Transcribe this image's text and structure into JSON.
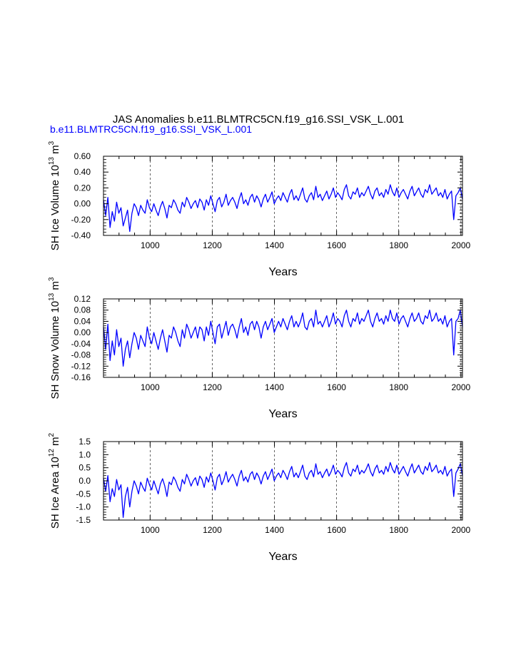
{
  "figure": {
    "title": "JAS Anomalies b.e11.BLMTRC5CN.f19_g16.SSI_VSK_L.001",
    "subtitle": "b.e11.BLMTRC5CN.f19_g16.SSI_VSK_L.001",
    "line_color": "#0000ff",
    "grid_color": "#000000"
  },
  "chart_data": [
    {
      "type": "line",
      "title": "",
      "xlabel": "Years",
      "ylabel": {
        "base": "SH Ice Volume 10",
        "exp1": "13",
        "unit": " m",
        "exp2": "3"
      },
      "xlim": [
        850,
        2005
      ],
      "ylim": [
        -0.4,
        0.6
      ],
      "xticks": [
        "1000",
        "1200",
        "1400",
        "1600",
        "1800",
        "2000"
      ],
      "yticks": [
        "-0.40",
        "-0.20",
        "0.00",
        "0.20",
        "0.40",
        "0.60"
      ],
      "grid": "vertical dashed at labelled x ticks",
      "series": [
        {
          "x_start": 850,
          "x_end": 2005,
          "values": [
            0.05,
            -0.15,
            0.08,
            -0.3,
            -0.1,
            -0.22,
            0.02,
            -0.12,
            -0.05,
            -0.28,
            -0.18,
            -0.08,
            -0.35,
            -0.12,
            0.0,
            -0.05,
            -0.15,
            -0.02,
            -0.08,
            -0.12,
            0.05,
            -0.05,
            -0.1,
            0.0,
            -0.08,
            -0.15,
            -0.04,
            0.03,
            -0.06,
            -0.18,
            -0.02,
            -0.05,
            0.05,
            0.0,
            -0.08,
            -0.12,
            0.02,
            -0.04,
            0.08,
            0.02,
            -0.06,
            0.0,
            0.04,
            -0.05,
            0.06,
            0.02,
            -0.08,
            0.05,
            -0.02,
            0.1,
            0.0,
            -0.1,
            0.04,
            0.08,
            -0.04,
            0.02,
            0.12,
            -0.02,
            0.04,
            0.08,
            0.02,
            -0.06,
            0.06,
            0.14,
            0.0,
            0.05,
            -0.02,
            0.08,
            0.12,
            0.02,
            0.1,
            0.05,
            -0.04,
            0.06,
            0.12,
            0.02,
            0.08,
            0.15,
            0.0,
            0.06,
            0.1,
            0.04,
            0.14,
            0.08,
            0.02,
            0.12,
            0.18,
            0.05,
            0.1,
            0.04,
            0.12,
            0.2,
            0.06,
            0.02,
            0.1,
            0.14,
            0.05,
            0.22,
            0.08,
            0.12,
            0.04,
            0.1,
            0.16,
            0.06,
            0.12,
            0.2,
            0.08,
            0.14,
            0.1,
            0.05,
            0.18,
            0.24,
            0.1,
            0.06,
            0.15,
            0.12,
            0.2,
            0.08,
            0.14,
            0.1,
            0.16,
            0.22,
            0.12,
            0.06,
            0.16,
            0.2,
            0.1,
            0.14,
            0.08,
            0.18,
            0.12,
            0.24,
            0.15,
            0.1,
            0.2,
            0.08,
            0.14,
            0.18,
            0.12,
            0.06,
            0.16,
            0.22,
            0.1,
            0.15,
            0.2,
            0.12,
            0.08,
            0.18,
            0.14,
            0.24,
            0.12,
            0.16,
            0.2,
            0.1,
            0.14,
            0.08,
            0.18,
            0.06,
            0.12,
            0.16,
            -0.2,
            0.1,
            0.14,
            0.2,
            0.06
          ]
        }
      ]
    },
    {
      "type": "line",
      "title": "",
      "xlabel": "Years",
      "ylabel": {
        "base": "SH Snow Volume 10",
        "exp1": "13",
        "unit": " m",
        "exp2": "3"
      },
      "xlim": [
        850,
        2005
      ],
      "ylim": [
        -0.16,
        0.12
      ],
      "xticks": [
        "1000",
        "1200",
        "1400",
        "1600",
        "1800",
        "2000"
      ],
      "yticks": [
        "-0.16",
        "-0.12",
        "-0.08",
        "-0.04",
        "0.00",
        "0.04",
        "0.08",
        "0.12"
      ],
      "grid": "vertical dashed at labelled x ticks",
      "series": [
        {
          "x_start": 850,
          "x_end": 2005,
          "values": [
            0.02,
            -0.06,
            0.03,
            -0.1,
            -0.03,
            -0.08,
            0.01,
            -0.05,
            -0.02,
            -0.12,
            -0.06,
            -0.03,
            -0.09,
            -0.04,
            0.0,
            -0.02,
            -0.06,
            -0.01,
            -0.03,
            -0.05,
            0.02,
            -0.02,
            -0.04,
            0.0,
            -0.03,
            -0.06,
            -0.02,
            0.01,
            -0.03,
            -0.07,
            -0.01,
            -0.02,
            0.02,
            0.0,
            -0.03,
            -0.05,
            0.01,
            -0.02,
            0.03,
            0.01,
            -0.02,
            0.0,
            0.02,
            -0.02,
            0.02,
            0.01,
            -0.03,
            0.02,
            -0.01,
            0.04,
            0.0,
            -0.04,
            0.02,
            0.03,
            -0.02,
            0.01,
            0.04,
            -0.01,
            0.02,
            0.03,
            0.01,
            -0.02,
            0.02,
            0.05,
            0.0,
            0.02,
            -0.01,
            0.03,
            0.04,
            0.01,
            0.04,
            0.02,
            -0.02,
            0.02,
            0.04,
            0.01,
            0.03,
            0.05,
            0.0,
            0.02,
            0.04,
            0.02,
            0.05,
            0.03,
            0.01,
            0.04,
            0.06,
            0.02,
            0.04,
            0.02,
            0.04,
            0.07,
            0.02,
            0.01,
            0.04,
            0.05,
            0.02,
            0.08,
            0.03,
            0.04,
            0.02,
            0.04,
            0.06,
            0.02,
            0.04,
            0.07,
            0.03,
            0.05,
            0.04,
            0.02,
            0.06,
            0.08,
            0.04,
            0.02,
            0.05,
            0.04,
            0.07,
            0.03,
            0.05,
            0.04,
            0.06,
            0.08,
            0.04,
            0.02,
            0.05,
            0.07,
            0.04,
            0.05,
            0.03,
            0.06,
            0.04,
            0.08,
            0.05,
            0.04,
            0.07,
            0.03,
            0.05,
            0.06,
            0.04,
            0.02,
            0.05,
            0.07,
            0.04,
            0.05,
            0.07,
            0.04,
            0.03,
            0.06,
            0.05,
            0.08,
            0.04,
            0.05,
            0.07,
            0.04,
            0.05,
            0.03,
            0.06,
            0.02,
            0.04,
            0.05,
            -0.08,
            0.04,
            0.05,
            0.08,
            0.02
          ]
        }
      ]
    },
    {
      "type": "line",
      "title": "",
      "xlabel": "Years",
      "ylabel": {
        "base": "SH Ice Area 10",
        "exp1": "12",
        "unit": " m",
        "exp2": "2"
      },
      "xlim": [
        850,
        2005
      ],
      "ylim": [
        -1.5,
        1.5
      ],
      "xticks": [
        "1000",
        "1200",
        "1400",
        "1600",
        "1800",
        "2000"
      ],
      "yticks": [
        "-1.5",
        "-1.0",
        "-0.5",
        "0.0",
        "0.5",
        "1.0",
        "1.5"
      ],
      "grid": "vertical dashed at labelled x ticks",
      "series": [
        {
          "x_start": 850,
          "x_end": 2005,
          "values": [
            0.1,
            -0.4,
            0.2,
            -0.8,
            -0.3,
            -0.6,
            0.05,
            -0.35,
            -0.15,
            -1.4,
            -0.6,
            -0.25,
            -1.0,
            -0.4,
            0.0,
            -0.2,
            -0.5,
            -0.05,
            -0.25,
            -0.4,
            0.1,
            -0.15,
            -0.35,
            0.0,
            -0.25,
            -0.5,
            -0.12,
            0.08,
            -0.2,
            -0.6,
            -0.05,
            -0.15,
            0.15,
            0.0,
            -0.25,
            -0.4,
            0.05,
            -0.12,
            0.25,
            0.05,
            -0.2,
            0.0,
            0.12,
            -0.18,
            0.18,
            0.05,
            -0.25,
            0.15,
            -0.05,
            0.3,
            0.0,
            -0.35,
            0.12,
            0.25,
            -0.15,
            0.05,
            0.35,
            -0.05,
            0.12,
            0.25,
            0.05,
            -0.2,
            0.18,
            0.4,
            0.0,
            0.15,
            -0.05,
            0.25,
            0.35,
            0.05,
            0.3,
            0.15,
            -0.12,
            0.18,
            0.35,
            0.05,
            0.25,
            0.45,
            0.0,
            0.18,
            0.3,
            0.12,
            0.4,
            0.25,
            0.05,
            0.35,
            0.55,
            0.15,
            0.3,
            0.12,
            0.35,
            0.6,
            0.18,
            0.05,
            0.3,
            0.4,
            0.15,
            0.65,
            0.25,
            0.35,
            0.12,
            0.3,
            0.45,
            0.18,
            0.35,
            0.6,
            0.25,
            0.4,
            0.3,
            0.15,
            0.5,
            0.7,
            0.3,
            0.18,
            0.45,
            0.35,
            0.6,
            0.25,
            0.4,
            0.3,
            0.45,
            0.65,
            0.35,
            0.18,
            0.45,
            0.6,
            0.3,
            0.4,
            0.25,
            0.55,
            0.35,
            0.7,
            0.45,
            0.3,
            0.6,
            0.25,
            0.4,
            0.55,
            0.35,
            0.18,
            0.45,
            0.65,
            0.3,
            0.45,
            0.6,
            0.35,
            0.25,
            0.55,
            0.4,
            0.7,
            0.35,
            0.45,
            0.6,
            0.3,
            0.4,
            0.25,
            0.55,
            0.18,
            0.35,
            0.45,
            -0.6,
            0.3,
            0.45,
            0.65,
            0.2
          ]
        }
      ]
    }
  ]
}
